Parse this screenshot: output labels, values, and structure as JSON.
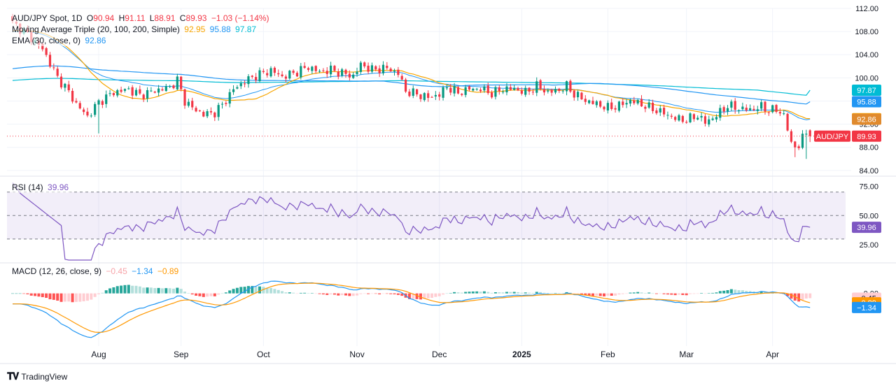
{
  "header": {
    "symbol": "AUD/JPY Spot, 1D",
    "o_label": "O",
    "o_value": "90.94",
    "h_label": "H",
    "h_value": "91.11",
    "l_label": "L",
    "l_value": "88.91",
    "c_label": "C",
    "c_value": "89.93",
    "change": "−1.03 (−1.14%)",
    "ma_title": "Moving Average Triple (20, 100, 200, Simple)",
    "ma20": "92.95",
    "ma100": "95.88",
    "ma200": "97.87",
    "ema_title": "EMA (30, close, 0)",
    "ema_value": "92.86"
  },
  "rsi_header": {
    "title": "RSI (14)",
    "value": "39.96"
  },
  "macd_header": {
    "title": "MACD (12, 26, close, 9)",
    "hist": "−0.45",
    "macd": "−1.34",
    "signal": "−0.89"
  },
  "brand": "TradingView",
  "colors": {
    "up": "#089981",
    "down": "#f23645",
    "ma20": "#f7a500",
    "ma100": "#2196f3",
    "ma200": "#00bcd4",
    "ema": "#e08a2d",
    "rsi": "#7e57c2",
    "macd": "#2196f3",
    "signal": "#ff9800",
    "hist_up_strong": "#26a69a",
    "hist_up_weak": "#b2dfdb",
    "hist_dn_strong": "#ff5252",
    "hist_dn_weak": "#ffcdd2"
  },
  "chart_data": {
    "type": "candlestick",
    "price_axis": {
      "ticks": [
        "112.00",
        "108.00",
        "104.00",
        "100.00",
        "96.00",
        "92.00",
        "88.00",
        "84.00"
      ],
      "ylim": [
        83.5,
        112
      ]
    },
    "rsi_axis": {
      "ticks": [
        "75.00",
        "50.00",
        "25.00"
      ],
      "ylim": [
        12,
        80
      ],
      "bands": [
        70,
        50,
        30
      ]
    },
    "macd_axis": {
      "ticks": [
        "0.00"
      ],
      "ylim": [
        -5,
        2.5
      ]
    },
    "x_labels": [
      "Aug",
      "Sep",
      "Oct",
      "Nov",
      "Dec",
      "2025",
      "Feb",
      "Mar",
      "Apr"
    ],
    "x_label_days": [
      23,
      45,
      67,
      92,
      114,
      136,
      159,
      180,
      203
    ],
    "last_close_label": "AUD/JPY",
    "right_tags": [
      {
        "text": "97.87",
        "value": 97.87,
        "key": "ma200"
      },
      {
        "text": "95.88",
        "value": 95.88,
        "key": "ma100"
      },
      {
        "text": "92.95",
        "value": 92.95,
        "key": "ma20"
      },
      {
        "text": "92.86",
        "value": 92.86,
        "key": "ema"
      },
      {
        "text": "89.93",
        "value": 89.93,
        "key": "down"
      }
    ],
    "rsi_tag": {
      "text": "39.96",
      "value": 39.96
    },
    "macd_tags": [
      {
        "text": "0.00",
        "value": 0.0,
        "plain": true
      },
      {
        "text": "−0.45",
        "value": -0.45,
        "key": "hist_dn_weak"
      },
      {
        "text": "−0.89",
        "value": -0.89,
        "key": "signal"
      },
      {
        "text": "−1.34",
        "value": -1.34,
        "key": "macd"
      }
    ],
    "close_anchors": [
      [
        0,
        109.5
      ],
      [
        4,
        107.5
      ],
      [
        8,
        105
      ],
      [
        12,
        100
      ],
      [
        14,
        98.5
      ],
      [
        17,
        95.5
      ],
      [
        20,
        93.3
      ],
      [
        23,
        95.8
      ],
      [
        27,
        97.5
      ],
      [
        31,
        98
      ],
      [
        34,
        97
      ],
      [
        38,
        97.8
      ],
      [
        42,
        98.4
      ],
      [
        44,
        99.6
      ],
      [
        46,
        96
      ],
      [
        48,
        94.8
      ],
      [
        51,
        93.7
      ],
      [
        54,
        94
      ],
      [
        56,
        95.3
      ],
      [
        59,
        98
      ],
      [
        62,
        99.4
      ],
      [
        65,
        100.4
      ],
      [
        69,
        101.3
      ],
      [
        72,
        100.2
      ],
      [
        75,
        100.8
      ],
      [
        79,
        101.9
      ],
      [
        82,
        101
      ],
      [
        85,
        101.4
      ],
      [
        88,
        100.8
      ],
      [
        91,
        100.3
      ],
      [
        93,
        102.3
      ],
      [
        96,
        101.4
      ],
      [
        100,
        101.7
      ],
      [
        103,
        100.8
      ],
      [
        105,
        97.7
      ],
      [
        108,
        97.2
      ],
      [
        111,
        96.6
      ],
      [
        114,
        97.1
      ],
      [
        116,
        98.5
      ],
      [
        119,
        97.4
      ],
      [
        122,
        98.1
      ],
      [
        125,
        98.1
      ],
      [
        128,
        97.3
      ],
      [
        131,
        98.1
      ],
      [
        134,
        98.1
      ],
      [
        137,
        97.5
      ],
      [
        140,
        98.6
      ],
      [
        143,
        97.5
      ],
      [
        146,
        97.9
      ],
      [
        148,
        98.6
      ],
      [
        150,
        97.2
      ],
      [
        153,
        96.1
      ],
      [
        156,
        95.5
      ],
      [
        159,
        94.8
      ],
      [
        162,
        95.2
      ],
      [
        165,
        96.1
      ],
      [
        168,
        95.4
      ],
      [
        171,
        94.6
      ],
      [
        174,
        93.9
      ],
      [
        177,
        93
      ],
      [
        180,
        92.7
      ],
      [
        183,
        93.5
      ],
      [
        185,
        92.3
      ],
      [
        188,
        93.5
      ],
      [
        191,
        95.2
      ],
      [
        194,
        94.7
      ],
      [
        197,
        94.5
      ],
      [
        200,
        95
      ],
      [
        202,
        94.4
      ],
      [
        204,
        94.5
      ],
      [
        206,
        93.6
      ],
      [
        208,
        88.6
      ],
      [
        210,
        88.1
      ],
      [
        212,
        90.9
      ],
      [
        213,
        89.93
      ]
    ]
  }
}
